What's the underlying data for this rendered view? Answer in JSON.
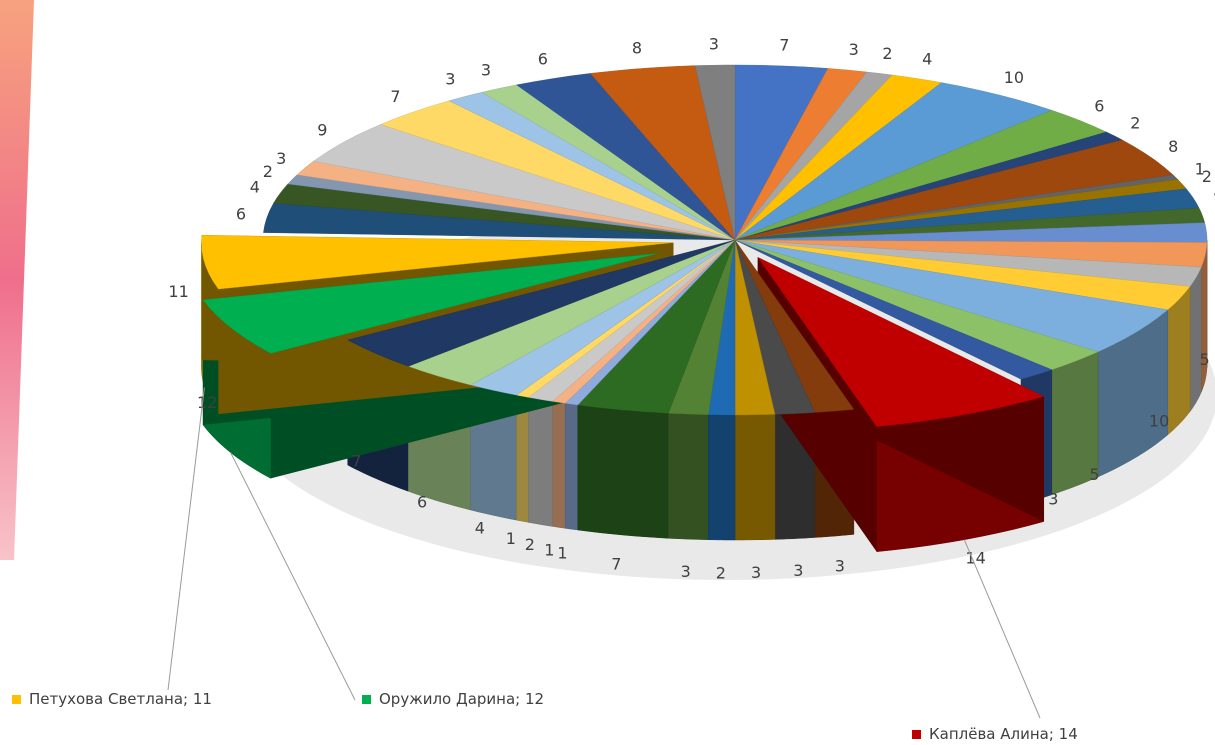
{
  "chart_data": {
    "type": "pie",
    "style": "3d-exploded",
    "title": "",
    "values": [
      7,
      3,
      2,
      4,
      10,
      6,
      2,
      8,
      1,
      2,
      4,
      3,
      4,
      5,
      4,
      5,
      10,
      5,
      3,
      14,
      3,
      3,
      3,
      2,
      3,
      7,
      1,
      1,
      2,
      1,
      4,
      6,
      7,
      12,
      11,
      6,
      4,
      2,
      3,
      9,
      7,
      3,
      3,
      6,
      8,
      3
    ],
    "colors": [
      "#4472c4",
      "#ed7d31",
      "#a5a5a5",
      "#ffc000",
      "#5b9bd5",
      "#70ad47",
      "#264478",
      "#9e480e",
      "#636363",
      "#997300",
      "#255e91",
      "#43682b",
      "#698ed0",
      "#f1975a",
      "#b7b7b7",
      "#ffcd33",
      "#7cafdd",
      "#8cc168",
      "#335aa1",
      "#c00000",
      "#843c0c",
      "#4a4a4a",
      "#bf9000",
      "#1f6bb3",
      "#548235",
      "#2e6b22",
      "#8faadc",
      "#f4b183",
      "#c9c9c9",
      "#ffd966",
      "#9dc3e6",
      "#a9d18e",
      "#1f3864",
      "#00b050",
      "#ffc000",
      "#1f4e79",
      "#375623",
      "#8497b0",
      "#f4b183",
      "#c9c9c9",
      "#ffd966",
      "#9dc3e6",
      "#a9d18e",
      "#2f5597",
      "#c55a11",
      "#7f7f7f"
    ],
    "labeled_slices": [
      {
        "name": "Каплёва Алина",
        "value": 14,
        "color": "#c00000",
        "text": "Каплёва Алина; 14"
      },
      {
        "name": "Оружило Дарина",
        "value": 12,
        "color": "#00b050",
        "text": "Оружило Дарина; 12"
      },
      {
        "name": "Петухова Светлана",
        "value": 11,
        "color": "#ffc000",
        "text": "Петухова Светлана; 11"
      }
    ],
    "legend": "none"
  },
  "decoration": {
    "stripe_colors": [
      "#f7a27e",
      "#ef6f8b",
      "#f8c3c9"
    ]
  }
}
